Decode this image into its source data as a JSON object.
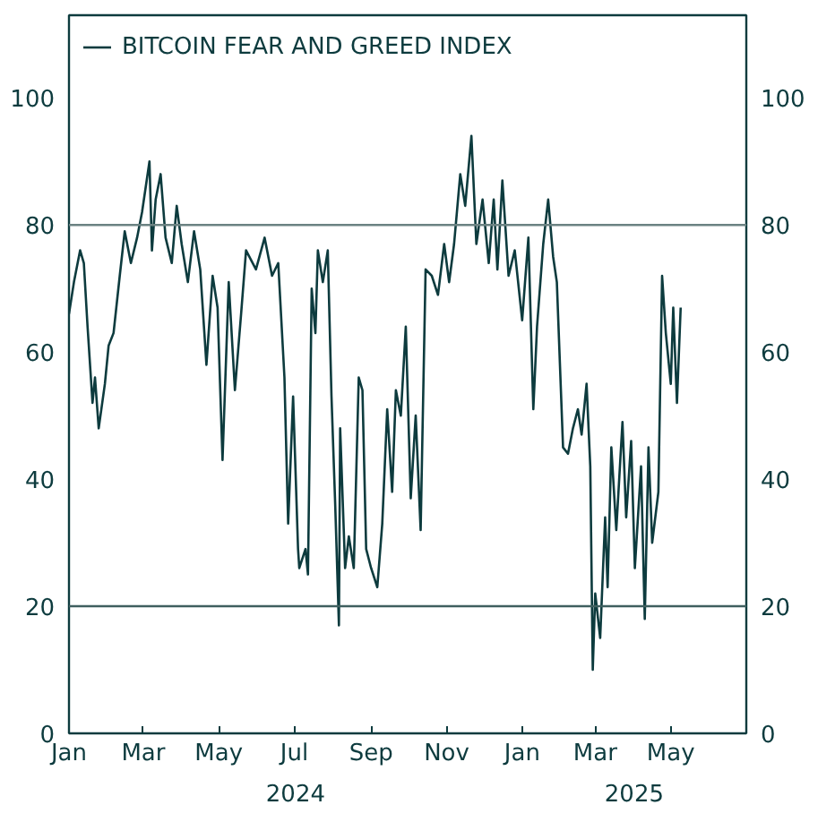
{
  "chart_data": {
    "type": "line",
    "x": [
      "2024-01-01",
      "2024-01-05",
      "2024-01-10",
      "2024-01-13",
      "2024-01-16",
      "2024-01-20",
      "2024-01-22",
      "2024-01-25",
      "2024-01-30",
      "2024-02-02",
      "2024-02-06",
      "2024-02-11",
      "2024-02-15",
      "2024-02-20",
      "2024-02-25",
      "2024-02-29",
      "2024-03-06",
      "2024-03-08",
      "2024-03-11",
      "2024-03-15",
      "2024-03-19",
      "2024-03-24",
      "2024-03-28",
      "2024-04-01",
      "2024-04-06",
      "2024-04-11",
      "2024-04-16",
      "2024-04-21",
      "2024-04-26",
      "2024-04-30",
      "2024-05-04",
      "2024-05-09",
      "2024-05-14",
      "2024-05-19",
      "2024-05-23",
      "2024-05-31",
      "2024-06-07",
      "2024-06-13",
      "2024-06-18",
      "2024-06-23",
      "2024-06-26",
      "2024-06-30",
      "2024-07-04",
      "2024-07-05",
      "2024-07-10",
      "2024-07-12",
      "2024-07-15",
      "2024-07-18",
      "2024-07-20",
      "2024-07-24",
      "2024-07-28",
      "2024-07-31",
      "2024-08-03",
      "2024-08-06",
      "2024-08-07",
      "2024-08-11",
      "2024-08-14",
      "2024-08-18",
      "2024-08-22",
      "2024-08-25",
      "2024-08-28",
      "2024-09-01",
      "2024-09-06",
      "2024-09-10",
      "2024-09-14",
      "2024-09-18",
      "2024-09-21",
      "2024-09-25",
      "2024-09-29",
      "2024-10-03",
      "2024-10-07",
      "2024-10-11",
      "2024-10-15",
      "2024-10-20",
      "2024-10-25",
      "2024-10-30",
      "2024-11-03",
      "2024-11-07",
      "2024-11-12",
      "2024-11-16",
      "2024-11-21",
      "2024-11-25",
      "2024-11-30",
      "2024-12-05",
      "2024-12-09",
      "2024-12-12",
      "2024-12-16",
      "2024-12-21",
      "2024-12-26",
      "2025-01-01",
      "2025-01-06",
      "2025-01-10",
      "2025-01-13",
      "2025-01-18",
      "2025-01-22",
      "2025-01-26",
      "2025-01-29",
      "2025-02-03",
      "2025-02-07",
      "2025-02-11",
      "2025-02-15",
      "2025-02-18",
      "2025-02-22",
      "2025-02-25",
      "2025-02-27",
      "2025-03-01",
      "2025-03-05",
      "2025-03-09",
      "2025-03-11",
      "2025-03-14",
      "2025-03-18",
      "2025-03-23",
      "2025-03-26",
      "2025-03-30",
      "2025-04-02",
      "2025-04-07",
      "2025-04-10",
      "2025-04-13",
      "2025-04-16",
      "2025-04-21",
      "2025-04-24",
      "2025-04-27",
      "2025-05-01",
      "2025-05-03",
      "2025-05-06",
      "2025-05-09"
    ],
    "series": [
      {
        "name": "BITCOIN FEAR AND GREED INDEX",
        "color": "#0d3b3e",
        "values": [
          66,
          71,
          76,
          74,
          64,
          52,
          56,
          48,
          55,
          61,
          63,
          72,
          79,
          74,
          78,
          82,
          90,
          76,
          84,
          88,
          78,
          74,
          83,
          77,
          71,
          79,
          73,
          58,
          72,
          67,
          43,
          71,
          54,
          66,
          76,
          73,
          78,
          72,
          74,
          56,
          33,
          53,
          29,
          26,
          29,
          25,
          70,
          63,
          76,
          71,
          76,
          53,
          36,
          17,
          48,
          26,
          31,
          26,
          56,
          54,
          29,
          26,
          23,
          33,
          51,
          38,
          54,
          50,
          64,
          37,
          50,
          32,
          73,
          72,
          69,
          77,
          71,
          77,
          88,
          83,
          94,
          77,
          84,
          74,
          84,
          73,
          87,
          72,
          76,
          65,
          78,
          51,
          64,
          77,
          84,
          75,
          71,
          45,
          44,
          48,
          51,
          47,
          55,
          42,
          10,
          22,
          15,
          34,
          23,
          45,
          32,
          49,
          34,
          46,
          26,
          42,
          18,
          45,
          30,
          38,
          72,
          63,
          55,
          67,
          52,
          67
        ]
      }
    ],
    "xlim": [
      "2024-01-01",
      "2025-07-01"
    ],
    "xticks": [
      {
        "value": "2024-01-01",
        "label": "Jan"
      },
      {
        "value": "2024-03-01",
        "label": "Mar"
      },
      {
        "value": "2024-05-01",
        "label": "May"
      },
      {
        "value": "2024-07-01",
        "label": "Jul"
      },
      {
        "value": "2024-09-01",
        "label": "Sep"
      },
      {
        "value": "2024-11-01",
        "label": "Nov"
      },
      {
        "value": "2025-01-01",
        "label": "Jan"
      },
      {
        "value": "2025-03-01",
        "label": "Mar"
      },
      {
        "value": "2025-05-01",
        "label": "May"
      }
    ],
    "annotations": [
      "2024",
      "2025"
    ],
    "ylim": [
      0,
      113
    ],
    "yticks": [
      0,
      20,
      40,
      60,
      80,
      100
    ],
    "y2lim": [
      0,
      113
    ],
    "y2ticks": [
      0,
      20,
      40,
      60,
      80,
      100
    ],
    "ref_lines": [
      {
        "axis": "y",
        "value": 80,
        "color": "#6b8282"
      },
      {
        "axis": "y",
        "value": 20,
        "color": "#3f5f5f"
      }
    ],
    "grid": false,
    "legend": "top left",
    "line_style": "solid"
  }
}
